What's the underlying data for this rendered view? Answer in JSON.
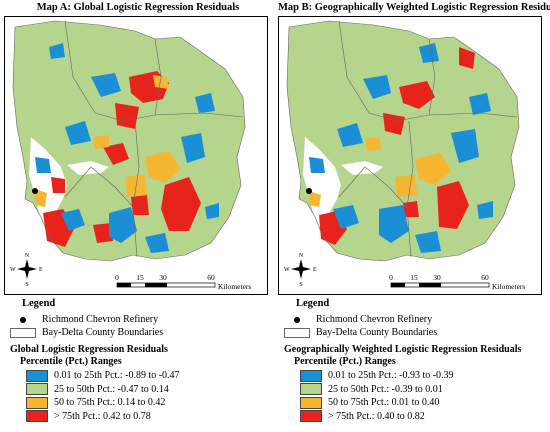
{
  "colors": {
    "class1": "#1a8fd6",
    "class2": "#b5d48c",
    "class3": "#f6b632",
    "class4": "#e8231c",
    "land_base": "#b5d48c",
    "water": "#ffffff",
    "refinery": "#000000"
  },
  "maps": [
    {
      "title": "Map A: Global Logistic Regression Residuals",
      "scale_ticks": [
        "0",
        "15",
        "30",
        "60"
      ],
      "scale_unit": "Kilometers",
      "north_letters": {
        "n": "N",
        "e": "E",
        "s": "S",
        "w": "W"
      },
      "legend": {
        "title": "Legend",
        "point_label": "Richmond Chevron Refinery",
        "boundary_label": "Bay-Delta County Boundaries",
        "section_title": "Global Logistic Regression Residuals",
        "subtitle": "Percentile (Pct.) Ranges",
        "classes": [
          {
            "label": "0.01 to 25th Pct.: -0.89 to -0.47"
          },
          {
            "label": "25 to 50th Pct.: -0.47 to 0.14"
          },
          {
            "label": "50 to 75th Pct.: 0.14 to 0.42"
          },
          {
            "label": "> 75th Pct.: 0.42 to 0.78"
          }
        ]
      }
    },
    {
      "title": "Map B: Geographically Weighted Logistic Regression Residuals",
      "scale_ticks": [
        "0",
        "15",
        "30",
        "60"
      ],
      "scale_unit": "Kilometers",
      "north_letters": {
        "n": "N",
        "e": "E",
        "s": "S",
        "w": "W"
      },
      "legend": {
        "title": "Legend",
        "point_label": "Richmond Chevron Refinery",
        "boundary_label": "Bay-Delta County Boundaries",
        "section_title": "Geographically Weighted Logistic Regression Residuals",
        "subtitle": "Percentile (Pct.) Ranges",
        "classes": [
          {
            "label": "0.01 to 25th Pct.: -0.93 to -0.39"
          },
          {
            "label": "25 to 50th Pct.: -0.39 to 0.01"
          },
          {
            "label": "50 to 75th Pct.: 0.01 to 0.40"
          },
          {
            "label": "> 75th Pct.: 0.40 to 0.82"
          }
        ]
      }
    }
  ]
}
